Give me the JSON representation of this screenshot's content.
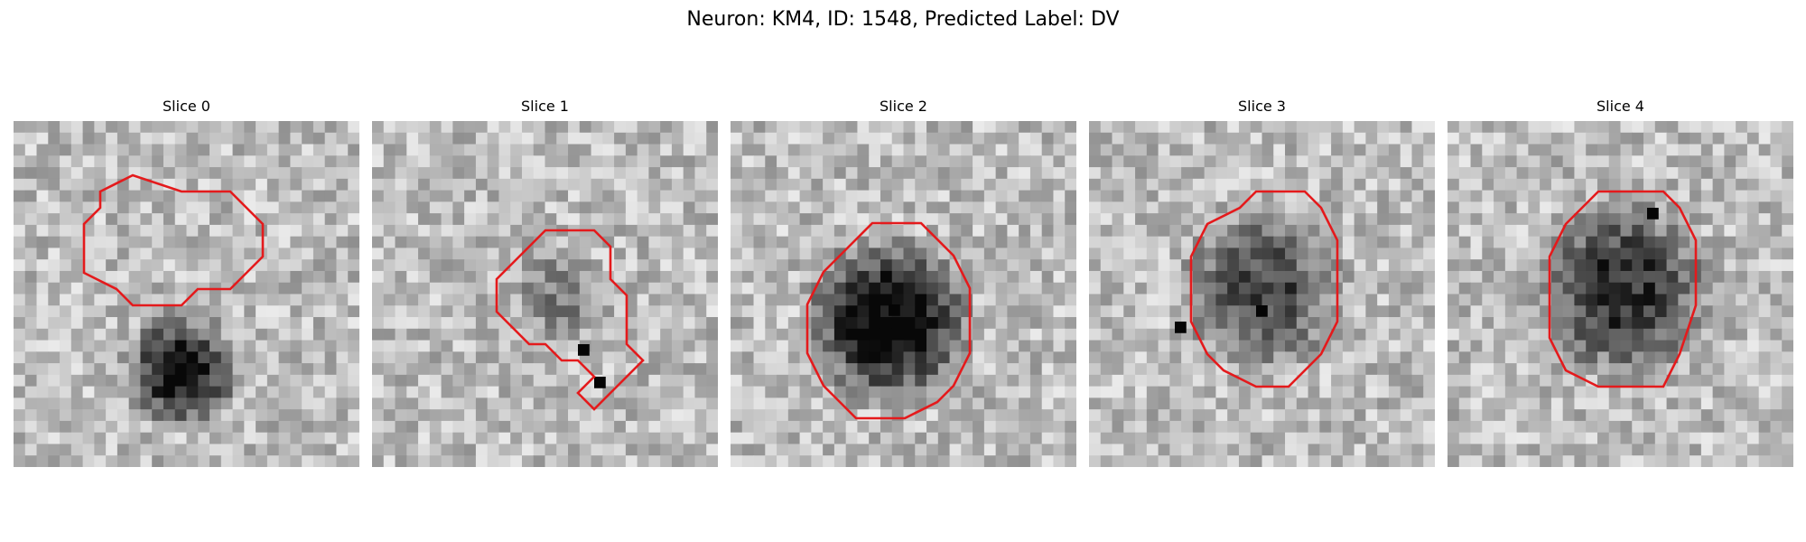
{
  "figure": {
    "title": "Neuron: KM4, ID: 1548, Predicted Label: DV"
  },
  "contour_color": "#e41a1c",
  "panels": [
    {
      "label": "Slice 0",
      "contour": [
        [
          7,
          1
        ],
        [
          10,
          1
        ],
        [
          12,
          3
        ],
        [
          12,
          5
        ],
        [
          10,
          7
        ],
        [
          8,
          7
        ],
        [
          7,
          8
        ],
        [
          4,
          8
        ],
        [
          3,
          7
        ],
        [
          1,
          6
        ],
        [
          1,
          3
        ],
        [
          2,
          2
        ],
        [
          2,
          1
        ],
        [
          4,
          0
        ]
      ],
      "dark": []
    },
    {
      "label": "Slice 1",
      "contour": [
        [
          5,
          2
        ],
        [
          7,
          2
        ],
        [
          8,
          3
        ],
        [
          8,
          5
        ],
        [
          9,
          6
        ],
        [
          9,
          9
        ],
        [
          10,
          10
        ],
        [
          8,
          12
        ],
        [
          7,
          13
        ],
        [
          6,
          12
        ],
        [
          7,
          11
        ],
        [
          6,
          10
        ],
        [
          5,
          10
        ],
        [
          4,
          9
        ],
        [
          3,
          9
        ],
        [
          1,
          7
        ],
        [
          1,
          5
        ],
        [
          2,
          4
        ],
        [
          3,
          3
        ],
        [
          4,
          2
        ]
      ],
      "dark": [
        [
          7,
          11
        ],
        [
          6,
          9
        ]
      ]
    },
    {
      "label": "Slice 2",
      "contour": [
        [
          4,
          1
        ],
        [
          7,
          1
        ],
        [
          9,
          3
        ],
        [
          10,
          5
        ],
        [
          10,
          9
        ],
        [
          9,
          11
        ],
        [
          8,
          12
        ],
        [
          6,
          13
        ],
        [
          3,
          13
        ],
        [
          1,
          11
        ],
        [
          0,
          9
        ],
        [
          0,
          6
        ],
        [
          1,
          4
        ],
        [
          2,
          3
        ],
        [
          3,
          2
        ]
      ],
      "dark": [
        [
          5,
          6
        ]
      ]
    },
    {
      "label": "Slice 3",
      "contour": [
        [
          5,
          1
        ],
        [
          8,
          1
        ],
        [
          9,
          2
        ],
        [
          10,
          4
        ],
        [
          10,
          9
        ],
        [
          9,
          11
        ],
        [
          7,
          13
        ],
        [
          5,
          13
        ],
        [
          3,
          12
        ],
        [
          2,
          11
        ],
        [
          1,
          9
        ],
        [
          1,
          5
        ],
        [
          2,
          3
        ],
        [
          4,
          2
        ]
      ],
      "dark": [
        [
          5,
          8
        ],
        [
          0,
          9
        ]
      ]
    },
    {
      "label": "Slice 4",
      "contour": [
        [
          4,
          1
        ],
        [
          8,
          1
        ],
        [
          9,
          2
        ],
        [
          10,
          4
        ],
        [
          10,
          8
        ],
        [
          9,
          11
        ],
        [
          8,
          13
        ],
        [
          6,
          13
        ],
        [
          4,
          13
        ],
        [
          2,
          12
        ],
        [
          1,
          10
        ],
        [
          1,
          5
        ],
        [
          2,
          3
        ],
        [
          3,
          2
        ]
      ],
      "dark": [
        [
          7,
          2
        ]
      ]
    }
  ]
}
